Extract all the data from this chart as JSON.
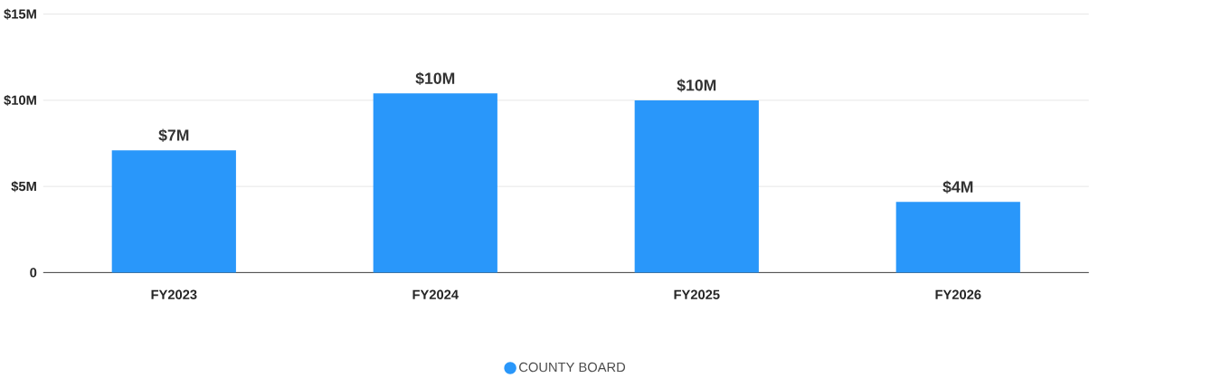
{
  "chart_data": {
    "type": "bar",
    "categories": [
      "FY2023",
      "FY2024",
      "FY2025",
      "FY2026"
    ],
    "series": [
      {
        "name": "COUNTY BOARD",
        "color": "#2997fa",
        "values": [
          7.1,
          10.4,
          10.0,
          4.1
        ],
        "value_labels": [
          "$7M",
          "$10M",
          "$10M",
          "$4M"
        ]
      }
    ],
    "ylim": [
      0,
      15
    ],
    "yticks": [
      {
        "value": 0,
        "label": "0"
      },
      {
        "value": 5,
        "label": "$5M"
      },
      {
        "value": 10,
        "label": "$10M"
      },
      {
        "value": 15,
        "label": "$15M"
      }
    ],
    "grid": "y",
    "legend": "bottom"
  }
}
